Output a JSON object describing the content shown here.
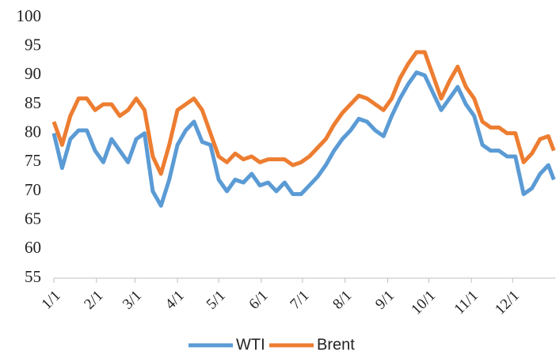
{
  "chart_data": {
    "type": "line",
    "x": [
      1,
      7,
      13,
      19,
      25,
      31,
      37,
      43,
      49,
      55,
      61,
      67,
      73,
      79,
      85,
      91,
      97,
      103,
      109,
      115,
      121,
      127,
      133,
      139,
      145,
      151,
      157,
      163,
      169,
      175,
      181,
      187,
      193,
      199,
      205,
      211,
      217,
      223,
      229,
      235,
      241,
      247,
      253,
      259,
      265,
      271,
      277,
      283,
      289,
      295,
      301,
      307,
      313,
      319,
      325,
      331,
      337,
      343,
      349,
      355,
      361,
      365
    ],
    "series": [
      {
        "name": "WTI",
        "color": "#5b9bd5",
        "values": [
          80,
          74,
          79,
          80.5,
          80.5,
          77,
          75,
          79,
          77,
          75,
          79,
          80,
          70,
          67.5,
          72,
          78,
          80.5,
          82,
          78.5,
          78,
          72,
          70,
          72,
          71.5,
          73,
          71,
          71.5,
          70,
          71.5,
          69.5,
          69.5,
          71,
          72.5,
          74.5,
          77,
          79,
          80.5,
          82.5,
          82,
          80.5,
          79.5,
          83,
          86,
          88.5,
          90.5,
          90,
          87,
          84,
          86,
          88,
          85,
          83,
          78,
          77,
          77,
          76,
          76,
          69.5,
          70.5,
          73,
          74.5,
          72
        ]
      },
      {
        "name": "Brent",
        "color": "#ed7d31",
        "values": [
          82,
          78,
          83,
          86,
          86,
          84,
          85,
          85,
          83,
          84,
          86,
          84,
          76,
          73,
          78,
          84,
          85,
          86,
          84,
          80,
          76,
          75,
          76.5,
          75.5,
          76,
          75,
          75.5,
          75.5,
          75.5,
          74.5,
          75,
          76,
          77.5,
          79,
          81.5,
          83.5,
          85,
          86.5,
          86,
          85,
          84,
          86,
          89.5,
          92,
          94,
          94,
          90,
          86,
          89,
          91.5,
          88,
          86,
          82,
          81,
          81,
          80,
          80,
          75,
          76.5,
          79,
          79.5,
          77
        ]
      }
    ],
    "xlim": [
      1,
      366
    ],
    "xticks": [
      {
        "value": 1,
        "label": "1/1"
      },
      {
        "value": 32,
        "label": "2/1"
      },
      {
        "value": 60,
        "label": "3/1"
      },
      {
        "value": 91,
        "label": "4/1"
      },
      {
        "value": 121,
        "label": "5/1"
      },
      {
        "value": 152,
        "label": "6/1"
      },
      {
        "value": 182,
        "label": "7/1"
      },
      {
        "value": 213,
        "label": "8/1"
      },
      {
        "value": 244,
        "label": "9/1"
      },
      {
        "value": 274,
        "label": "10/1"
      },
      {
        "value": 305,
        "label": "11/1"
      },
      {
        "value": 335,
        "label": "12/1"
      }
    ],
    "ylim": [
      55,
      100
    ],
    "yticks": [
      55,
      60,
      65,
      70,
      75,
      80,
      85,
      90,
      95,
      100
    ],
    "grid": false,
    "legend": "bottom"
  }
}
